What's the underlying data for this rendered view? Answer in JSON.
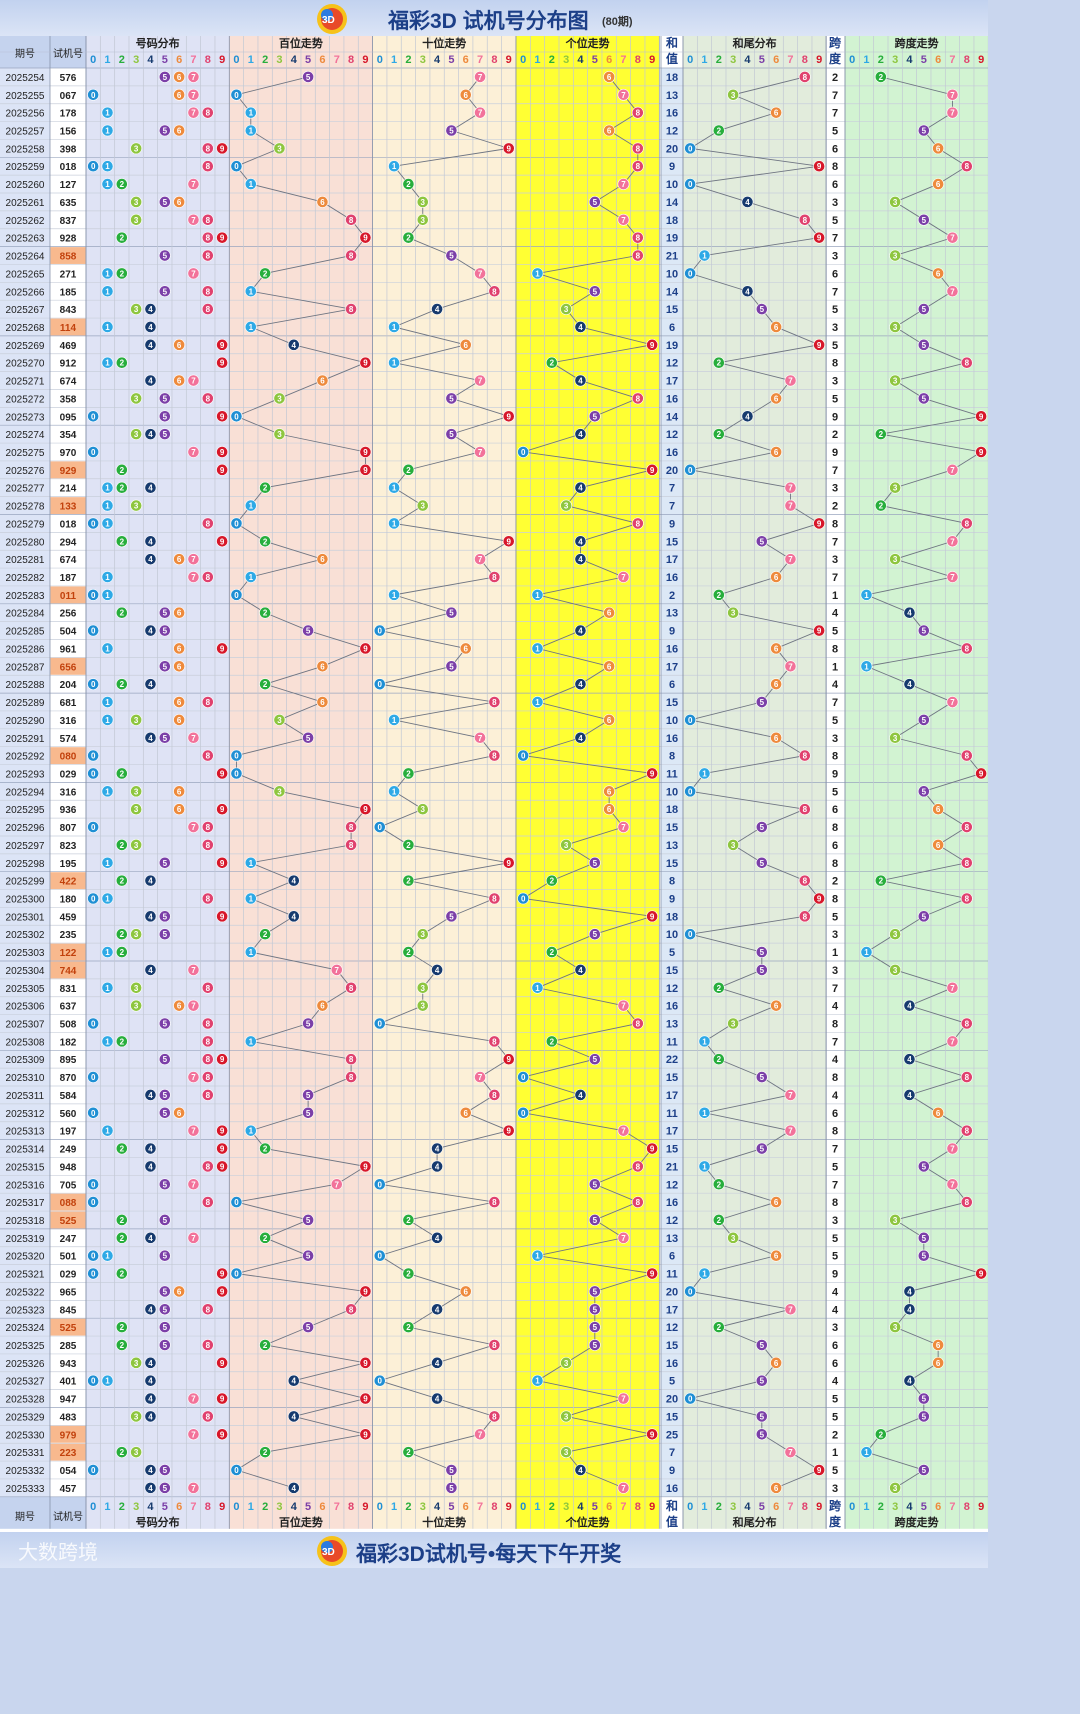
{
  "header": {
    "title": "福彩3D 试机号分布图",
    "subtitle": "(80期)",
    "logo_icon": "3d-ball-logo-icon"
  },
  "footer": {
    "slogan": "福彩3D试机号•每天下午开奖",
    "watermark": "大数跨境"
  },
  "columns": {
    "period": "期号",
    "trial": "试机号",
    "num_dist": "号码分布",
    "hundreds": "百位走势",
    "tens": "十位走势",
    "units": "个位走势",
    "sum_top": "和",
    "sum_bottom": "值",
    "tail": "和尾分布",
    "span_top": "跨",
    "span_bottom": "度",
    "span_trend": "跨度走势"
  },
  "chart_data": {
    "type": "table",
    "periods": [
      "2025254",
      "2025255",
      "2025256",
      "2025257",
      "2025258",
      "2025259",
      "2025260",
      "2025261",
      "2025262",
      "2025263",
      "2025264",
      "2025265",
      "2025266",
      "2025267",
      "2025268",
      "2025269",
      "2025270",
      "2025271",
      "2025272",
      "2025273",
      "2025274",
      "2025275",
      "2025276",
      "2025277",
      "2025278",
      "2025279",
      "2025280",
      "2025281",
      "2025282",
      "2025283",
      "2025284",
      "2025285",
      "2025286",
      "2025287",
      "2025288",
      "2025289",
      "2025290",
      "2025291",
      "2025292",
      "2025293",
      "2025294",
      "2025295",
      "2025296",
      "2025297",
      "2025298",
      "2025299",
      "2025300",
      "2025301",
      "2025302",
      "2025303",
      "2025304",
      "2025305",
      "2025306",
      "2025307",
      "2025308",
      "2025309",
      "2025310",
      "2025311",
      "2025312",
      "2025313",
      "2025314",
      "2025315",
      "2025316",
      "2025317",
      "2025318",
      "2025319",
      "2025320",
      "2025321",
      "2025322",
      "2025323",
      "2025324",
      "2025325",
      "2025326",
      "2025327",
      "2025328",
      "2025329",
      "2025330",
      "2025331",
      "2025332",
      "2025333"
    ],
    "trial_numbers": [
      "576",
      "067",
      "178",
      "156",
      "398",
      "018",
      "127",
      "635",
      "837",
      "928",
      "858",
      "271",
      "185",
      "843",
      "114",
      "469",
      "912",
      "674",
      "358",
      "095",
      "354",
      "970",
      "929",
      "214",
      "133",
      "018",
      "294",
      "674",
      "187",
      "011",
      "256",
      "504",
      "961",
      "656",
      "204",
      "681",
      "316",
      "574",
      "080",
      "029",
      "316",
      "936",
      "807",
      "823",
      "195",
      "422",
      "180",
      "459",
      "235",
      "122",
      "744",
      "831",
      "637",
      "508",
      "182",
      "895",
      "870",
      "584",
      "560",
      "197",
      "249",
      "948",
      "705",
      "088",
      "525",
      "247",
      "501",
      "029",
      "965",
      "845",
      "525",
      "285",
      "943",
      "401",
      "947",
      "483",
      "979",
      "223",
      "054",
      "457"
    ],
    "sums": [
      18,
      13,
      16,
      12,
      20,
      9,
      10,
      14,
      18,
      19,
      21,
      10,
      14,
      15,
      6,
      19,
      12,
      17,
      16,
      14,
      12,
      16,
      20,
      7,
      7,
      9,
      15,
      17,
      16,
      2,
      13,
      9,
      16,
      17,
      6,
      15,
      10,
      16,
      8,
      11,
      10,
      18,
      15,
      13,
      15,
      8,
      9,
      18,
      10,
      5,
      15,
      12,
      16,
      13,
      11,
      22,
      15,
      17,
      11,
      17,
      15,
      21,
      12,
      16,
      12,
      13,
      6,
      11,
      20,
      17,
      12,
      15,
      16,
      5,
      20,
      15,
      25,
      7,
      9,
      16
    ],
    "spans": [
      2,
      7,
      7,
      5,
      6,
      8,
      6,
      3,
      5,
      7,
      3,
      6,
      7,
      5,
      3,
      5,
      8,
      3,
      5,
      9,
      2,
      9,
      7,
      3,
      2,
      8,
      7,
      3,
      7,
      1,
      4,
      5,
      8,
      1,
      4,
      7,
      5,
      3,
      8,
      9,
      5,
      6,
      8,
      6,
      8,
      2,
      8,
      5,
      3,
      1,
      3,
      7,
      4,
      8,
      7,
      4,
      8,
      4,
      6,
      8,
      7,
      5,
      7,
      8,
      3,
      5,
      5,
      9,
      4,
      4,
      3,
      6,
      6,
      4,
      5,
      5,
      2,
      1,
      5,
      3
    ],
    "digit_colors": [
      "#1f8fd4",
      "#2ea9e6",
      "#27ae3c",
      "#8ec63f",
      "#163a6e",
      "#7b3fa8",
      "#ee8a3c",
      "#f2729a",
      "#e0416e",
      "#d7172a"
    ],
    "column_digits": [
      "0",
      "1",
      "2",
      "3",
      "4",
      "5",
      "6",
      "7",
      "8",
      "9"
    ]
  }
}
